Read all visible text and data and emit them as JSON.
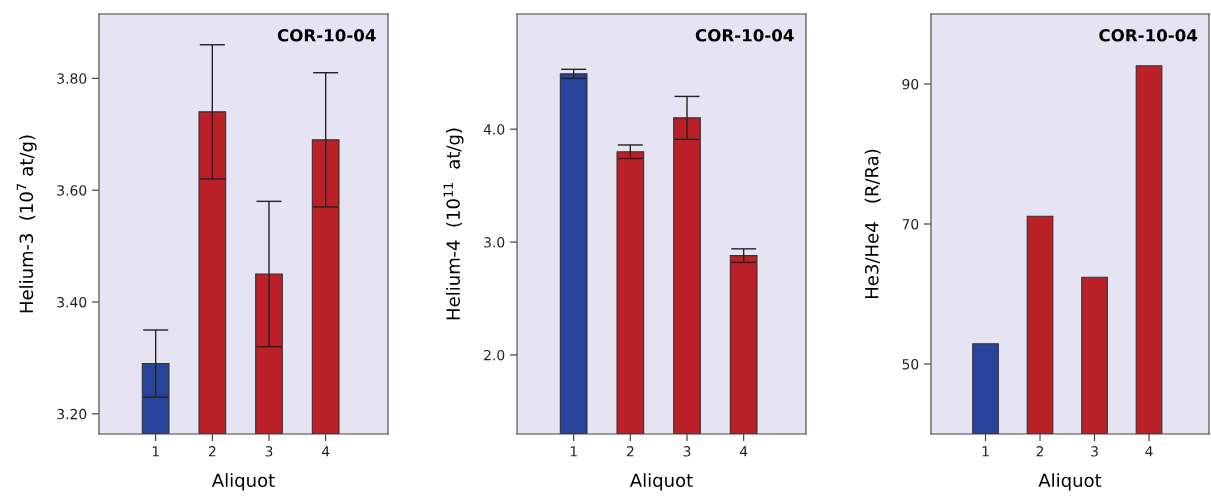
{
  "chart_data": [
    {
      "type": "bar",
      "xlabel": "Aliquot",
      "ylabel": "Helium-3  (10$^{7}$ at/g)",
      "annotations": [
        "COR-10-04"
      ],
      "categories": [
        "1",
        "2",
        "3",
        "4"
      ],
      "values": [
        3.29,
        3.74,
        3.45,
        3.69
      ],
      "errors": [
        0.06,
        0.12,
        0.13,
        0.12
      ],
      "colors": [
        "#27439a",
        "#bb1f28",
        "#bb1f28",
        "#bb1f28"
      ],
      "ylim": [
        3.164,
        3.915
      ],
      "yticks": [
        {
          "value": 3.2,
          "label": "3.20"
        },
        {
          "value": 3.4,
          "label": "3.40"
        },
        {
          "value": 3.6,
          "label": "3.60"
        },
        {
          "value": 3.8,
          "label": "3.80"
        }
      ]
    },
    {
      "type": "bar",
      "xlabel": "Aliquot",
      "ylabel": "Helium-4  (10$^{11}$  at/g)",
      "annotations": [
        "COR-10-04"
      ],
      "categories": [
        "1",
        "2",
        "3",
        "4"
      ],
      "values": [
        4.49,
        3.8,
        4.1,
        2.88
      ],
      "errors": [
        0.04,
        0.06,
        0.19,
        0.06
      ],
      "colors": [
        "#27439a",
        "#bb1f28",
        "#bb1f28",
        "#bb1f28"
      ],
      "ylim": [
        1.3,
        5.02
      ],
      "yticks": [
        {
          "value": 2,
          "label": "2.0"
        },
        {
          "value": 3,
          "label": "3.0"
        },
        {
          "value": 4,
          "label": "4.0"
        }
      ]
    },
    {
      "type": "bar",
      "xlabel": "Aliquot",
      "ylabel": "He3/He4   (R/Ra)",
      "annotations": [
        "COR-10-04"
      ],
      "categories": [
        "1",
        "2",
        "3",
        "4"
      ],
      "values": [
        52.9,
        71.1,
        62.4,
        92.6
      ],
      "colors": [
        "#27439a",
        "#bb1f28",
        "#bb1f28",
        "#bb1f28"
      ],
      "ylim": [
        40,
        100
      ],
      "yticks": [
        50,
        70,
        90
      ]
    }
  ]
}
